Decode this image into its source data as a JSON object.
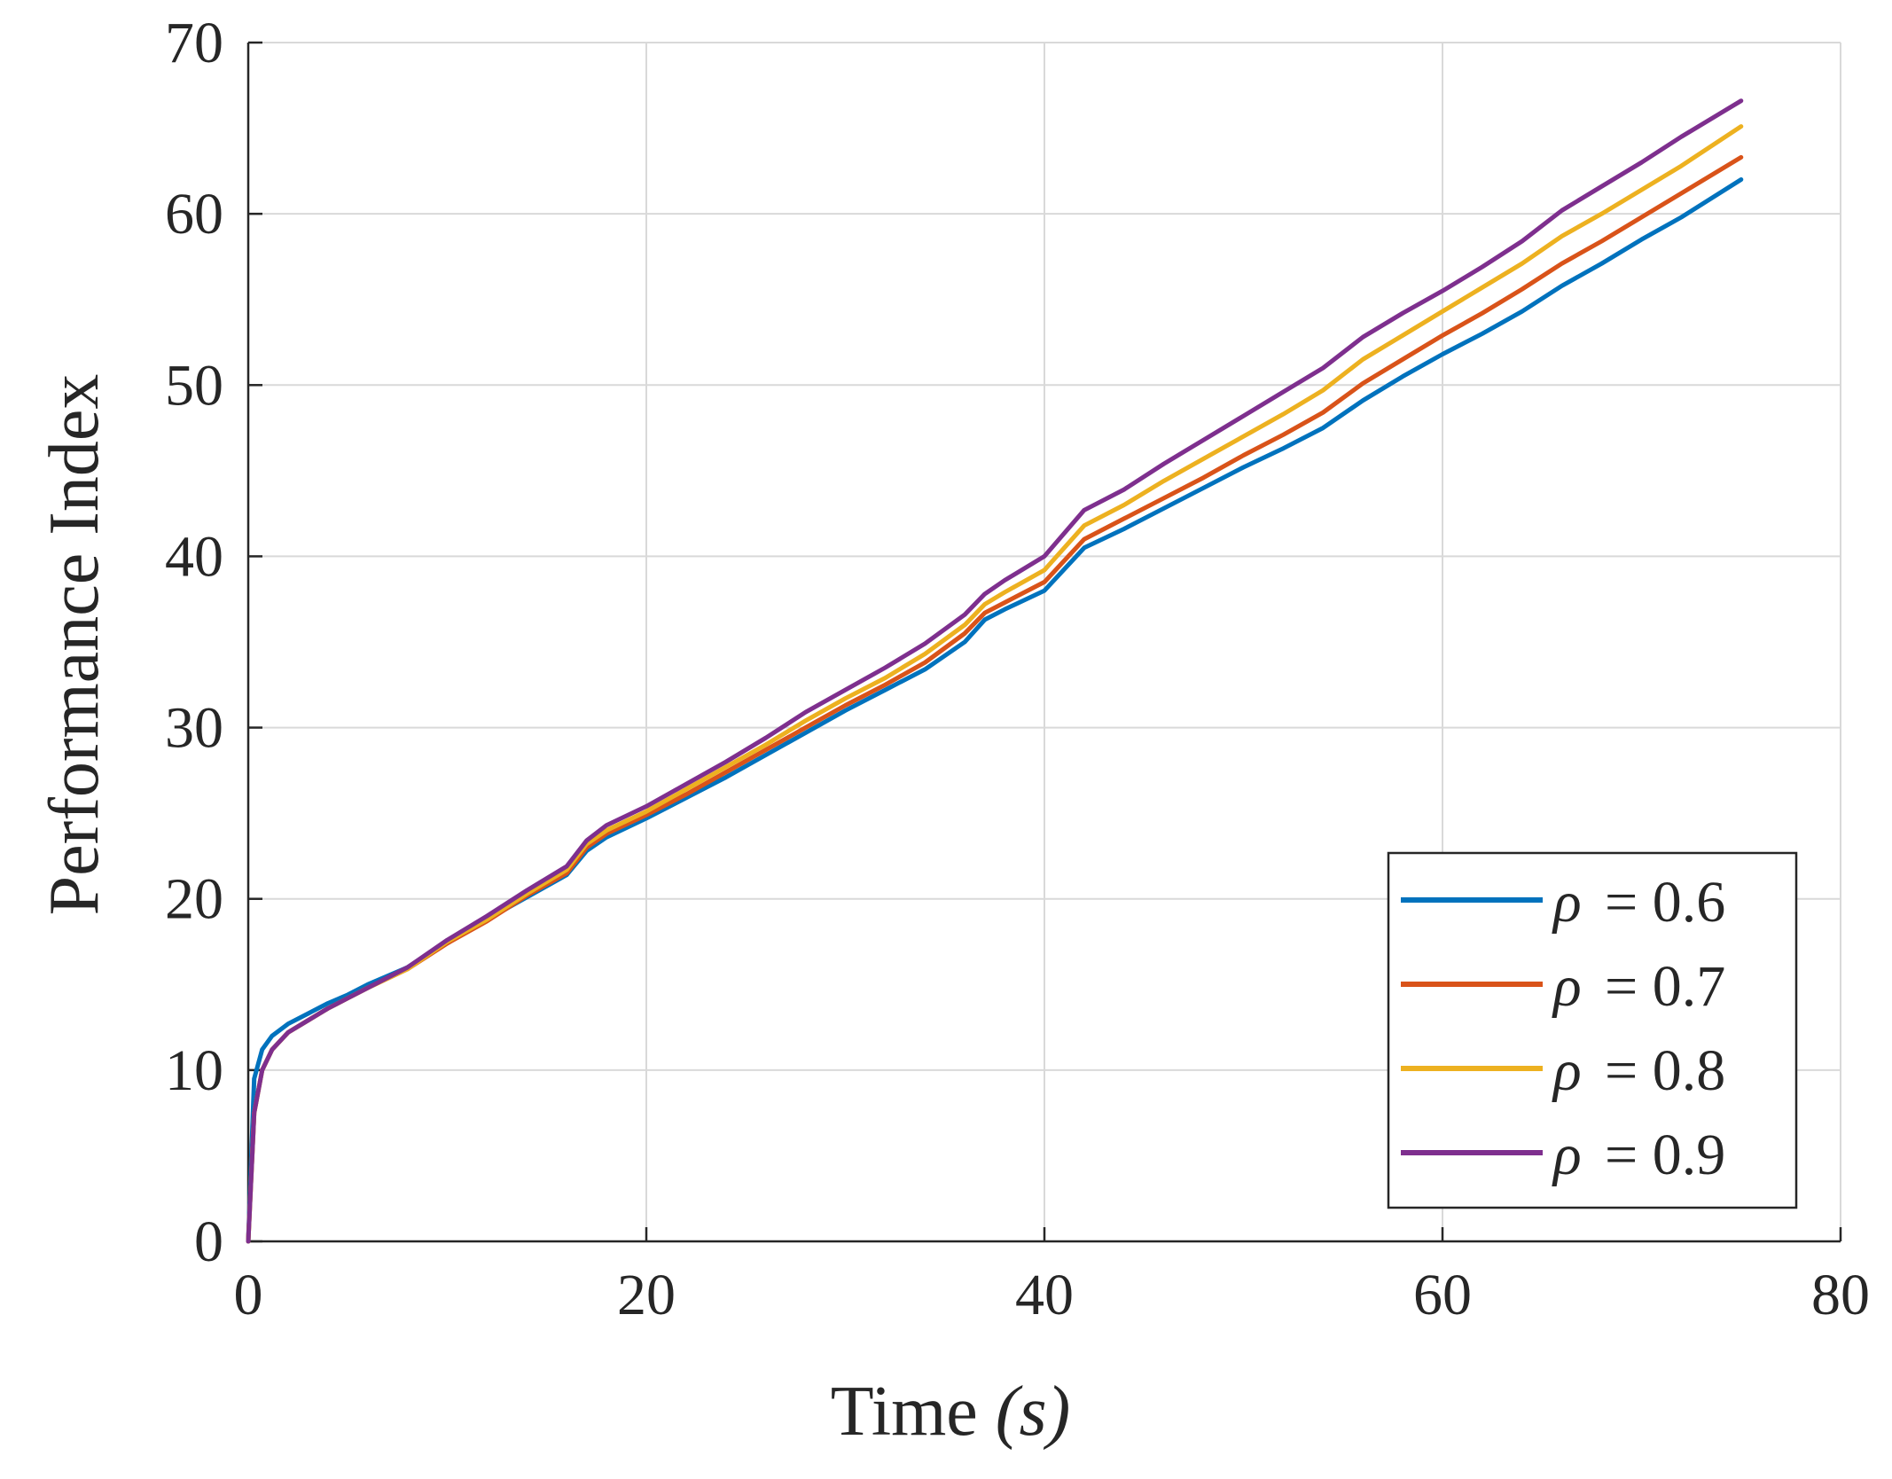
{
  "chart_data": {
    "type": "line",
    "title": "",
    "xlabel": "Time ",
    "xlabel_var": "(s)",
    "ylabel": "Performance Index",
    "xlim": [
      0,
      80
    ],
    "ylim": [
      0,
      70
    ],
    "xticks": [
      0,
      20,
      40,
      60,
      80
    ],
    "yticks": [
      0,
      10,
      20,
      30,
      40,
      50,
      60,
      70
    ],
    "grid": true,
    "legend_position": "bottom-right",
    "series": [
      {
        "name": "ρ = 0.6",
        "legend_symbol": "ρ",
        "legend_value": "= 0.6",
        "color": "#0072BD",
        "x": [
          0,
          0.3,
          0.7,
          1.2,
          2,
          3,
          4,
          5,
          6,
          8,
          10,
          12,
          14,
          16,
          17,
          18,
          20,
          22,
          24,
          26,
          28,
          30,
          32,
          34,
          36,
          37,
          38,
          40,
          42,
          44,
          46,
          48,
          50,
          52,
          54,
          56,
          58,
          60,
          62,
          64,
          66,
          68,
          70,
          72,
          75
        ],
        "y": [
          0,
          9.5,
          11.2,
          12,
          12.7,
          13.3,
          13.9,
          14.4,
          15,
          16,
          17.5,
          18.8,
          20.1,
          21.4,
          22.8,
          23.6,
          24.7,
          25.9,
          27.1,
          28.4,
          29.7,
          31,
          32.2,
          33.4,
          35,
          36.3,
          36.9,
          38,
          40.5,
          41.6,
          42.8,
          44,
          45.2,
          46.3,
          47.5,
          49.1,
          50.5,
          51.8,
          53,
          54.3,
          55.8,
          57.1,
          58.5,
          59.8,
          62
        ]
      },
      {
        "name": "ρ = 0.7",
        "legend_symbol": "ρ",
        "legend_value": "= 0.7",
        "color": "#D95319",
        "x": [
          0,
          0.3,
          0.7,
          1.2,
          2,
          3,
          4,
          5,
          6,
          8,
          10,
          12,
          14,
          16,
          17,
          18,
          20,
          22,
          24,
          26,
          28,
          30,
          32,
          34,
          36,
          37,
          38,
          40,
          42,
          44,
          46,
          48,
          50,
          52,
          54,
          56,
          58,
          60,
          62,
          64,
          66,
          68,
          70,
          72,
          75
        ],
        "y": [
          0,
          7.5,
          10,
          11.2,
          12.2,
          12.9,
          13.6,
          14.2,
          14.8,
          15.9,
          17.4,
          18.7,
          20.2,
          21.5,
          23,
          23.8,
          24.9,
          26.1,
          27.4,
          28.7,
          30,
          31.3,
          32.5,
          33.8,
          35.5,
          36.7,
          37.3,
          38.5,
          41,
          42.2,
          43.4,
          44.6,
          45.9,
          47.1,
          48.4,
          50.1,
          51.5,
          52.9,
          54.2,
          55.6,
          57.1,
          58.4,
          59.8,
          61.2,
          63.3
        ]
      },
      {
        "name": "ρ = 0.8",
        "legend_symbol": "ρ",
        "legend_value": "= 0.8",
        "color": "#EDB120",
        "x": [
          0,
          0.3,
          0.7,
          1.2,
          2,
          3,
          4,
          5,
          6,
          8,
          10,
          12,
          14,
          16,
          17,
          18,
          20,
          22,
          24,
          26,
          28,
          30,
          32,
          34,
          36,
          37,
          38,
          40,
          42,
          44,
          46,
          48,
          50,
          52,
          54,
          56,
          58,
          60,
          62,
          64,
          66,
          68,
          70,
          72,
          75
        ],
        "y": [
          0,
          7.5,
          10,
          11.2,
          12.2,
          12.9,
          13.6,
          14.2,
          14.8,
          15.9,
          17.5,
          18.8,
          20.3,
          21.7,
          23.2,
          24,
          25.1,
          26.4,
          27.7,
          29,
          30.4,
          31.7,
          32.9,
          34.3,
          36,
          37.2,
          37.9,
          39.2,
          41.8,
          43,
          44.4,
          45.7,
          47,
          48.3,
          49.7,
          51.5,
          52.9,
          54.3,
          55.7,
          57.1,
          58.7,
          60,
          61.4,
          62.8,
          65.1
        ]
      },
      {
        "name": "ρ = 0.9",
        "legend_symbol": "ρ",
        "legend_value": "= 0.9",
        "color": "#7E2F8E",
        "x": [
          0,
          0.3,
          0.7,
          1.2,
          2,
          3,
          4,
          5,
          6,
          8,
          10,
          12,
          14,
          16,
          17,
          18,
          20,
          22,
          24,
          26,
          28,
          30,
          32,
          34,
          36,
          37,
          38,
          40,
          42,
          44,
          46,
          48,
          50,
          52,
          54,
          56,
          58,
          60,
          62,
          64,
          66,
          68,
          70,
          72,
          75
        ],
        "y": [
          0,
          7.5,
          10,
          11.2,
          12.2,
          12.9,
          13.6,
          14.2,
          14.8,
          16,
          17.6,
          19,
          20.5,
          21.9,
          23.4,
          24.3,
          25.4,
          26.7,
          28,
          29.4,
          30.9,
          32.2,
          33.5,
          34.9,
          36.6,
          37.8,
          38.6,
          40,
          42.7,
          43.9,
          45.4,
          46.8,
          48.2,
          49.6,
          51,
          52.8,
          54.2,
          55.5,
          56.9,
          58.4,
          60.2,
          61.6,
          63,
          64.5,
          66.6
        ]
      }
    ]
  }
}
